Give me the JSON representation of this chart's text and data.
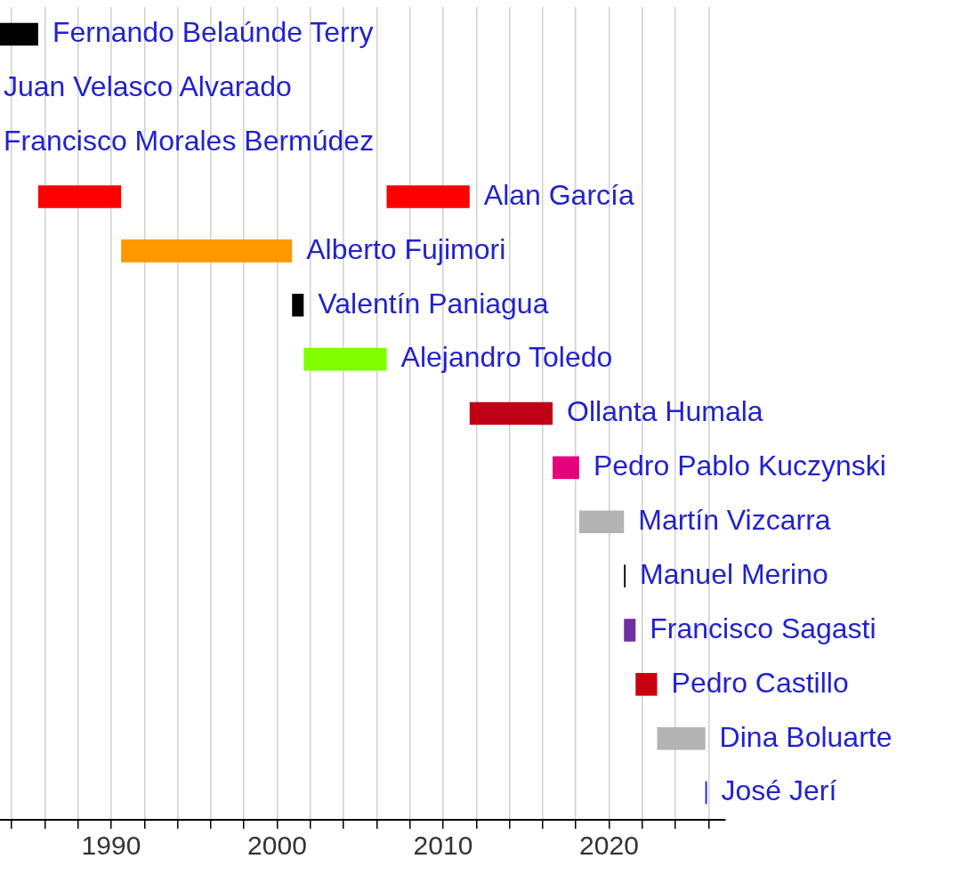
{
  "chart_data": {
    "type": "bar",
    "orientation": "horizontal",
    "tick_labels": "x",
    "grid": "x",
    "legend": false,
    "categories": [
      "Fernando Belaúnde Terry",
      "Juan Velasco Alvarado",
      "Francisco Morales Bermúdez",
      "Alan García",
      "Alberto Fujimori",
      "Valentín Paniagua",
      "Alejandro Toledo",
      "Ollanta Humala",
      "Pedro Pablo Kuczynski",
      "Martín Vizcarra",
      "Manuel Merino",
      "Francisco Sagasti",
      "Pedro Castillo",
      "Dina Boluarte",
      "José Jerí"
    ],
    "series": [
      {
        "base": [
          1983.3,
          null,
          null,
          1985.6,
          1990.6,
          2000.9,
          2001.6,
          2011.6,
          2016.6,
          2018.2,
          2020.9,
          2020.9,
          2021.6,
          2022.9,
          2025.8
        ],
        "values": [
          2.3,
          null,
          null,
          5.0,
          10.3,
          0.7,
          5.0,
          5.0,
          1.6,
          2.7,
          0.1,
          0.7,
          1.3,
          2.9,
          0.1
        ],
        "colors": [
          "#000000",
          null,
          null,
          "#ff0000",
          "#ff9900",
          "#000000",
          "#80ff00",
          "#c00015",
          "#e6007e",
          "#b3b3b3",
          "#000000",
          "#7030a0",
          "#c8000f",
          "#b3b3b3",
          "#2020d0"
        ]
      },
      {
        "base": [
          null,
          null,
          null,
          2006.6,
          null,
          null,
          null,
          null,
          null,
          null,
          null,
          null,
          null,
          null,
          null
        ],
        "values": [
          null,
          null,
          null,
          5.0,
          null,
          null,
          null,
          null,
          null,
          null,
          null,
          null,
          null,
          null,
          null
        ],
        "colors": [
          null,
          null,
          null,
          "#ff0000",
          null,
          null,
          null,
          null,
          null,
          null,
          null,
          null,
          null,
          null,
          null
        ]
      }
    ],
    "xlim": [
      1983.3,
      2027
    ],
    "xticks": [
      {
        "value": 1984,
        "label": null
      },
      {
        "value": 1986,
        "label": null
      },
      {
        "value": 1988,
        "label": null
      },
      1990,
      {
        "value": 1992,
        "label": null
      },
      {
        "value": 1994,
        "label": null
      },
      {
        "value": 1996,
        "label": null
      },
      {
        "value": 1998,
        "label": null
      },
      2000,
      {
        "value": 2002,
        "label": null
      },
      {
        "value": 2004,
        "label": null
      },
      {
        "value": 2006,
        "label": null
      },
      {
        "value": 2008,
        "label": null
      },
      2010,
      {
        "value": 2012,
        "label": null
      },
      {
        "value": 2014,
        "label": null
      },
      {
        "value": 2016,
        "label": null
      },
      {
        "value": 2018,
        "label": null
      },
      2020,
      {
        "value": 2022,
        "label": null
      },
      {
        "value": 2024,
        "label": null
      },
      {
        "value": 2026,
        "label": null
      }
    ]
  }
}
